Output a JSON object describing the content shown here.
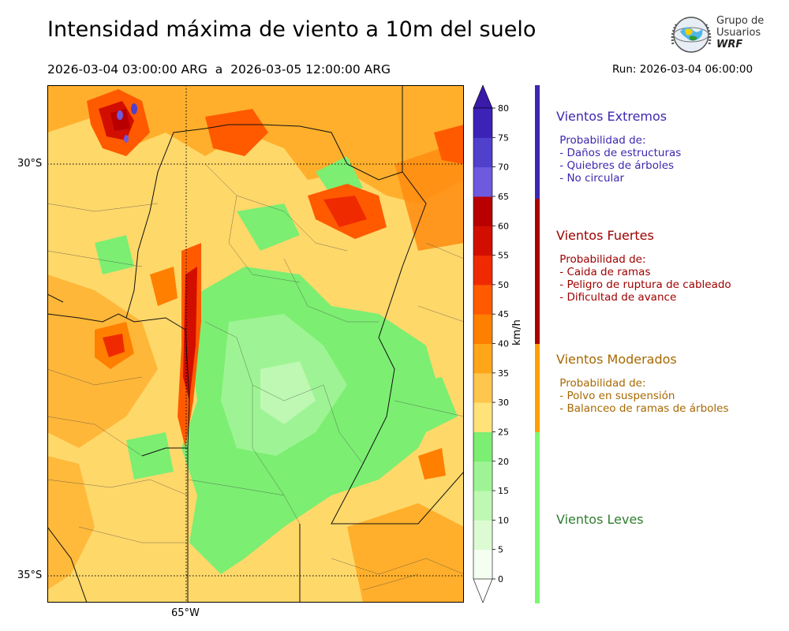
{
  "title": "Intensidad máxima de viento a 10m del suelo",
  "period": "2026-03-04 03:00:00 ARG  a  2026-03-05 12:00:00 ARG",
  "run": "Run: 2026-03-04 06:00:00",
  "logo": {
    "line1": "Grupo de",
    "line2": "Usuarios",
    "line3": "WRF"
  },
  "map": {
    "lat_labels": [
      "30°S",
      "35°S"
    ],
    "lon_labels": [
      "65°W"
    ]
  },
  "colorbar": {
    "units": "km/h",
    "ticks": [
      "0",
      "5",
      "10",
      "15",
      "20",
      "25",
      "30",
      "35",
      "40",
      "45",
      "50",
      "55",
      "60",
      "65",
      "70",
      "75",
      "80"
    ],
    "colors": [
      "#f4fff1",
      "#dcfbd3",
      "#bef8b3",
      "#9ef494",
      "#7cee72",
      "#ffe27a",
      "#ffc64e",
      "#ffa51a",
      "#ff7f00",
      "#ff5a00",
      "#f02a00",
      "#d20e00",
      "#b80000",
      "#6d5adf",
      "#5040cc",
      "#3d22b8"
    ],
    "over_color": "#3a1aa8",
    "under_color": "#ffffff"
  },
  "legend": [
    {
      "title": "Vientos Extremos",
      "color": "#3c28b0",
      "text_color": "#3c28b0",
      "lines": [
        " Probabilidad de:",
        " - Daños de estructuras",
        " - Quiebres de árboles",
        " - No circular"
      ]
    },
    {
      "title": "Vientos Fuertes",
      "color": "#aa0000",
      "text_color": "#a00000",
      "lines": [
        " Probabilidad de:",
        " - Caida de ramas",
        " - Peligro de ruptura de cableado",
        " - Dificultad de avance"
      ]
    },
    {
      "title": "Vientos Moderados",
      "color": "#ff9f00",
      "text_color": "#a86800",
      "lines": [
        " Probabilidad de:",
        " - Polvo en suspensión",
        " - Balanceo de ramas de árboles"
      ]
    },
    {
      "title": "Vientos Leves",
      "color": "#7cf870",
      "text_color": "#2e7d2e",
      "lines": []
    }
  ]
}
